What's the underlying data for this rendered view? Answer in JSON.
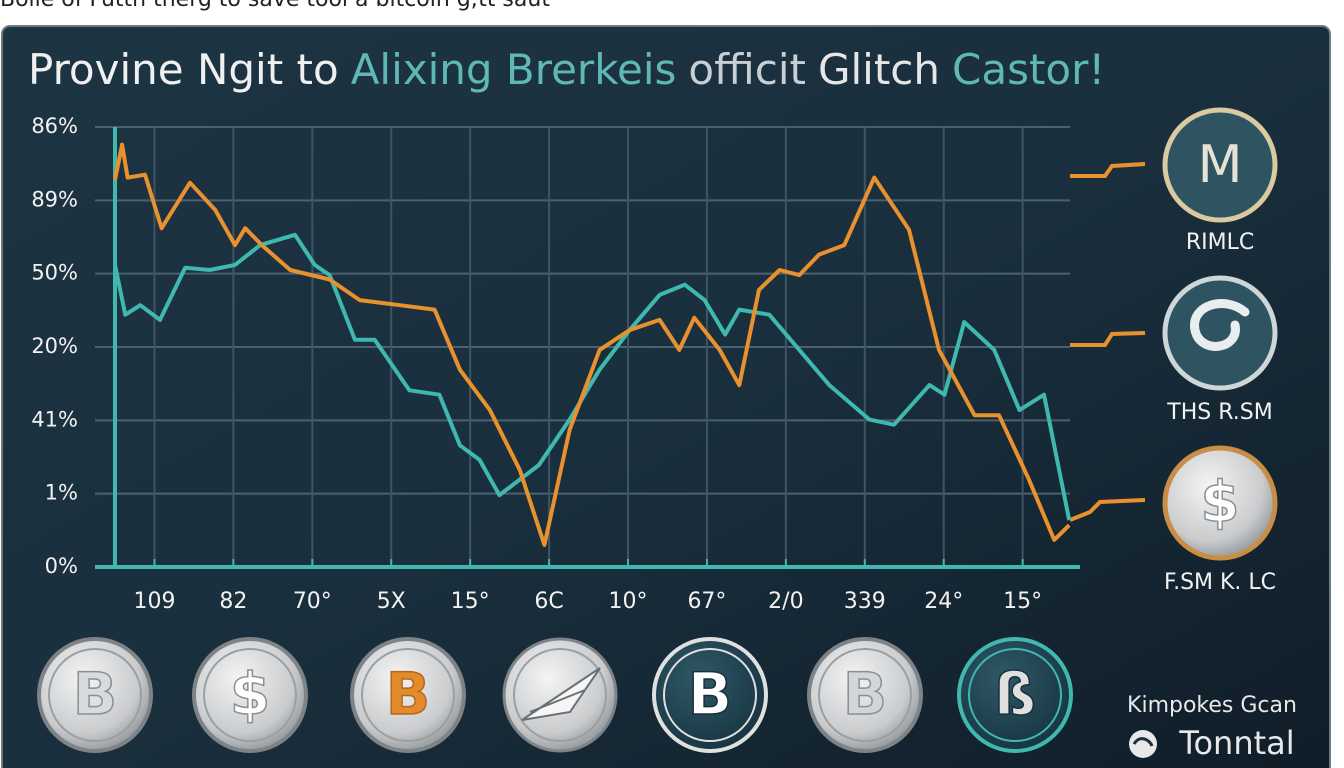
{
  "caption": "Bolle of Futth therg to save tool a bitcoin g;tt saut",
  "chart_data": {
    "type": "line",
    "title": [
      "Provine Ngit to",
      "Alixing Brerkeis",
      "officit",
      "Glitch",
      "Castor!"
    ],
    "title_colors": [
      "#f0f0f0",
      "#5fb8b4",
      "#c7cfd2",
      "#e6e6e6",
      "#5fb8b4"
    ],
    "categories": [
      "109",
      "82",
      "70°",
      "5X",
      "15°",
      "6C",
      "10°",
      "67°",
      "2/0",
      "339",
      "24°",
      "15°"
    ],
    "xlim": [
      -0.5,
      11.6
    ],
    "ylim": [
      0,
      6
    ],
    "yticks": [
      {
        "value": 0,
        "label": "0%"
      },
      {
        "value": 1,
        "label": "1%"
      },
      {
        "value": 2,
        "label": "41%"
      },
      {
        "value": 3,
        "label": "20%"
      },
      {
        "value": 4,
        "label": "50%"
      },
      {
        "value": 5,
        "label": "89%"
      },
      {
        "value": 6,
        "label": "86%"
      }
    ],
    "grid": true,
    "axis_color": "#3fb8b0",
    "series": [
      {
        "color": "#3fb8b0",
        "x": [
          -0.5,
          -0.37,
          -0.18,
          0.07,
          0.39,
          0.7,
          1.02,
          1.34,
          1.78,
          2.03,
          2.22,
          2.54,
          2.79,
          3.23,
          3.61,
          3.87,
          4.12,
          4.37,
          4.87,
          5.26,
          5.64,
          6.02,
          6.4,
          6.72,
          6.97,
          7.23,
          7.41,
          7.79,
          8.17,
          8.55,
          9.06,
          9.37,
          9.82,
          10.01,
          10.26,
          10.64,
          10.96,
          11.27,
          11.59
        ],
        "values": [
          4.12,
          3.44,
          3.57,
          3.37,
          4.08,
          4.05,
          4.12,
          4.39,
          4.53,
          4.12,
          3.98,
          3.1,
          3.1,
          2.41,
          2.35,
          1.66,
          1.46,
          0.98,
          1.39,
          2.01,
          2.69,
          3.23,
          3.71,
          3.85,
          3.64,
          3.17,
          3.51,
          3.44,
          2.96,
          2.48,
          2.01,
          1.94,
          2.48,
          2.35,
          3.34,
          2.96,
          2.14,
          2.35,
          0.64
        ]
      },
      {
        "color": "#e8912e",
        "x": [
          -0.5,
          -0.41,
          -0.34,
          -0.12,
          0.09,
          0.45,
          0.77,
          1.02,
          1.15,
          1.36,
          1.72,
          2.22,
          2.6,
          3.11,
          3.55,
          3.87,
          4.25,
          4.63,
          4.94,
          5.26,
          5.64,
          6.02,
          6.4,
          6.65,
          6.84,
          7.16,
          7.41,
          7.66,
          7.92,
          8.17,
          8.42,
          8.74,
          9.12,
          9.56,
          9.94,
          10.39,
          10.7,
          11.08,
          11.4,
          11.59
        ],
        "values": [
          5.28,
          5.76,
          5.31,
          5.35,
          4.62,
          5.24,
          4.87,
          4.39,
          4.62,
          4.39,
          4.05,
          3.92,
          3.64,
          3.57,
          3.51,
          2.69,
          2.14,
          1.32,
          0.3,
          1.87,
          2.96,
          3.23,
          3.37,
          2.96,
          3.4,
          2.96,
          2.48,
          3.78,
          4.05,
          3.98,
          4.26,
          4.39,
          5.31,
          4.6,
          2.96,
          2.07,
          2.07,
          1.19,
          0.37,
          0.57
        ]
      }
    ]
  },
  "badges": [
    {
      "glyph": "M",
      "label": "RIMLC"
    },
    {
      "label": "THS R.SM"
    },
    {
      "glyph": "$",
      "label": "F.SM K. LC"
    }
  ],
  "coins": [
    "B",
    "$",
    "B",
    "B",
    "B",
    "ß"
  ],
  "footer": {
    "tagline": "Kimpokes Gcan",
    "brand": "Tonntal"
  }
}
